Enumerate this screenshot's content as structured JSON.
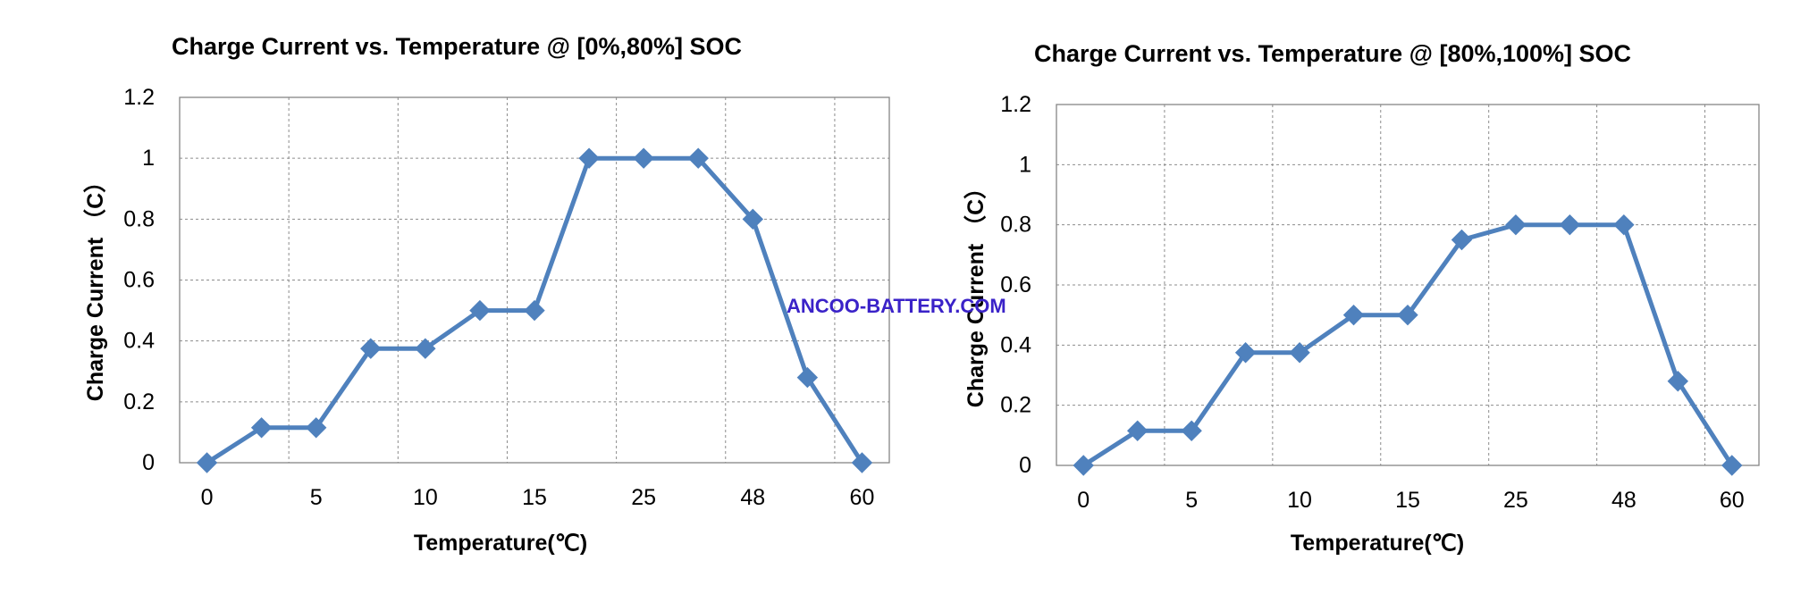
{
  "watermark": "ANCOO-BATTERY.COM",
  "colors": {
    "series": "#4f81bd",
    "grid": "#8c8c8c",
    "frame": "#868686"
  },
  "chart_data": [
    {
      "type": "line",
      "title": "Charge Current vs. Temperature @ [0%,80%] SOC",
      "xlabel": "Temperature(℃)",
      "ylabel": "Charge Current （C）",
      "categories": [
        "0",
        "",
        "5",
        "",
        "10",
        "",
        "15",
        "",
        "25",
        "",
        "48",
        "",
        "60"
      ],
      "values": [
        0,
        0.115,
        0.115,
        0.375,
        0.375,
        0.5,
        0.5,
        1,
        1,
        1,
        0.8,
        0.28,
        0
      ],
      "ylim": [
        0,
        1.2
      ],
      "yticks": [
        "0",
        "0.2",
        "0.4",
        "0.6",
        "0.8",
        "1",
        "1.2"
      ],
      "grid": true,
      "marker": "diamond"
    },
    {
      "type": "line",
      "title": "Charge Current vs. Temperature @ [80%,100%] SOC",
      "xlabel": "Temperature(℃)",
      "ylabel": "Charge Current （C）",
      "categories": [
        "0",
        "",
        "5",
        "",
        "10",
        "",
        "15",
        "",
        "25",
        "",
        "48",
        "",
        "60"
      ],
      "values": [
        0,
        0.115,
        0.115,
        0.375,
        0.375,
        0.5,
        0.5,
        0.75,
        0.8,
        0.8,
        0.8,
        0.28,
        0
      ],
      "ylim": [
        0,
        1.2
      ],
      "yticks": [
        "0",
        "0.2",
        "0.4",
        "0.6",
        "0.8",
        "1",
        "1.2"
      ],
      "grid": true,
      "marker": "diamond"
    }
  ]
}
